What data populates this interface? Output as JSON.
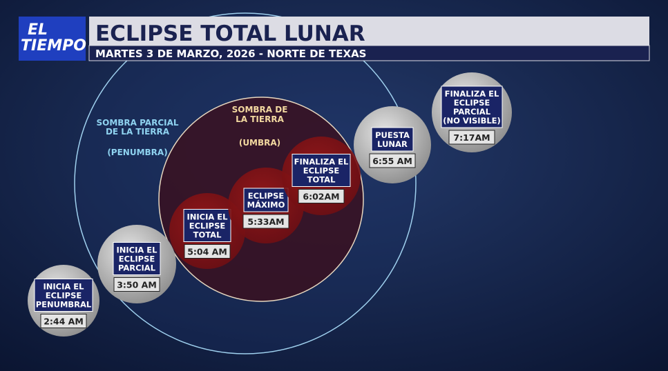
{
  "logo": {
    "lines": [
      "EL",
      "TIEMPO"
    ]
  },
  "header": {
    "title": "ECLIPSE TOTAL LUNAR",
    "subtitle": "MARTES 3 DE MARZO, 2026 - NORTE DE TEXAS"
  },
  "penumbra": {
    "lines": [
      "SOMBRA PARCIAL",
      "DE LA TIERRA",
      "(PENUMBRA)"
    ]
  },
  "umbra": {
    "lines": [
      "SOMBRA DE",
      "LA TIERRA",
      "(UMBRA)"
    ]
  },
  "stages": [
    {
      "label": [
        "INICIA EL",
        "ECLIPSE",
        "PENUMBRAL"
      ],
      "time": "2:44 AM"
    },
    {
      "label": [
        "INICIA EL",
        "ECLIPSE",
        "PARCIAL"
      ],
      "time": "3:50 AM"
    },
    {
      "label": [
        "INICIA EL",
        "ECLIPSE",
        "TOTAL"
      ],
      "time": "5:04 AM"
    },
    {
      "label": [
        "ECLIPSE",
        "MÁXIMO"
      ],
      "time": "5:33AM"
    },
    {
      "label": [
        "FINALIZA EL",
        "ECLIPSE",
        "TOTAL"
      ],
      "time": "6:02AM"
    },
    {
      "label": [
        "PUESTA",
        "LUNAR"
      ],
      "time": "6:55 AM"
    },
    {
      "label": [
        "FINALIZA EL",
        "ECLIPSE",
        "PARCIAL",
        "(NO VISIBLE)"
      ],
      "time": "7:17AM"
    }
  ]
}
